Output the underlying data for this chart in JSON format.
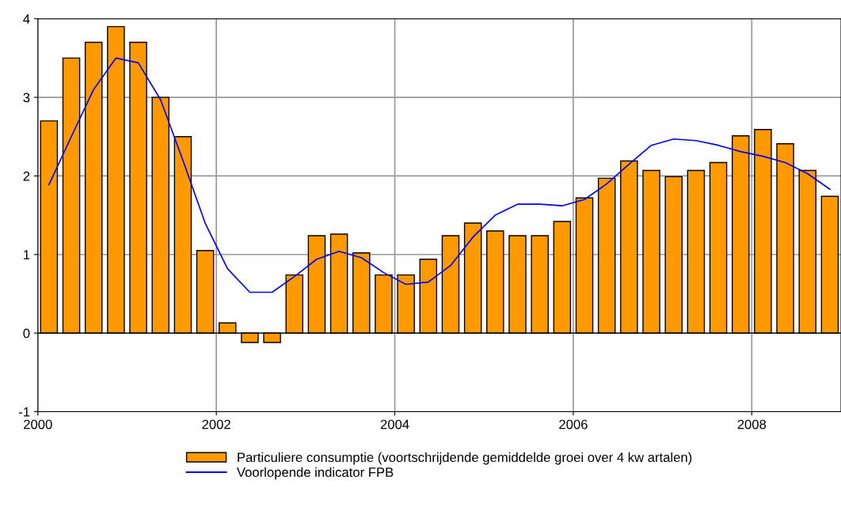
{
  "chart_data": {
    "type": "bar",
    "x": [
      2000.125,
      2000.375,
      2000.625,
      2000.875,
      2001.125,
      2001.375,
      2001.625,
      2001.875,
      2002.125,
      2002.375,
      2002.625,
      2002.875,
      2003.125,
      2003.375,
      2003.625,
      2003.875,
      2004.125,
      2004.375,
      2004.625,
      2004.875,
      2005.125,
      2005.375,
      2005.625,
      2005.875,
      2006.125,
      2006.375,
      2006.625,
      2006.875,
      2007.125,
      2007.375,
      2007.625,
      2007.875,
      2008.125,
      2008.375,
      2008.625,
      2008.875
    ],
    "series": [
      {
        "name": "Particuliere consumptie (voortschrijdende gemiddelde groei over 4 kw artalen)",
        "color": "#ff9900",
        "values": [
          2.7,
          3.5,
          3.7,
          3.9,
          3.7,
          3.0,
          2.5,
          1.05,
          0.13,
          -0.12,
          -0.12,
          0.74,
          1.24,
          1.26,
          1.02,
          0.74,
          0.74,
          0.94,
          1.24,
          1.4,
          1.3,
          1.24,
          1.24,
          1.42,
          1.72,
          1.97,
          2.19,
          2.07,
          1.99,
          2.07,
          2.17,
          2.51,
          2.59,
          2.41,
          2.07,
          1.74
        ]
      },
      {
        "name": "Voorlopende indicator FPB",
        "type": "line",
        "color": "#0000ff",
        "values": [
          1.89,
          2.5,
          3.1,
          3.5,
          3.44,
          2.97,
          2.2,
          1.4,
          0.82,
          0.52,
          0.52,
          0.72,
          0.94,
          1.04,
          0.96,
          0.77,
          0.62,
          0.65,
          0.86,
          1.22,
          1.5,
          1.64,
          1.64,
          1.62,
          1.7,
          1.9,
          2.15,
          2.39,
          2.47,
          2.45,
          2.39,
          2.31,
          2.25,
          2.17,
          2.03,
          1.83
        ]
      }
    ],
    "xlim": [
      2000,
      2009
    ],
    "xticks": [
      2000,
      2002,
      2004,
      2006,
      2008
    ],
    "ylim": [
      -1,
      4
    ],
    "yticks": [
      -1,
      0,
      1,
      2,
      3,
      4
    ],
    "grid": true,
    "legend": "bottom",
    "marker": "none",
    "line_style": "solid"
  }
}
